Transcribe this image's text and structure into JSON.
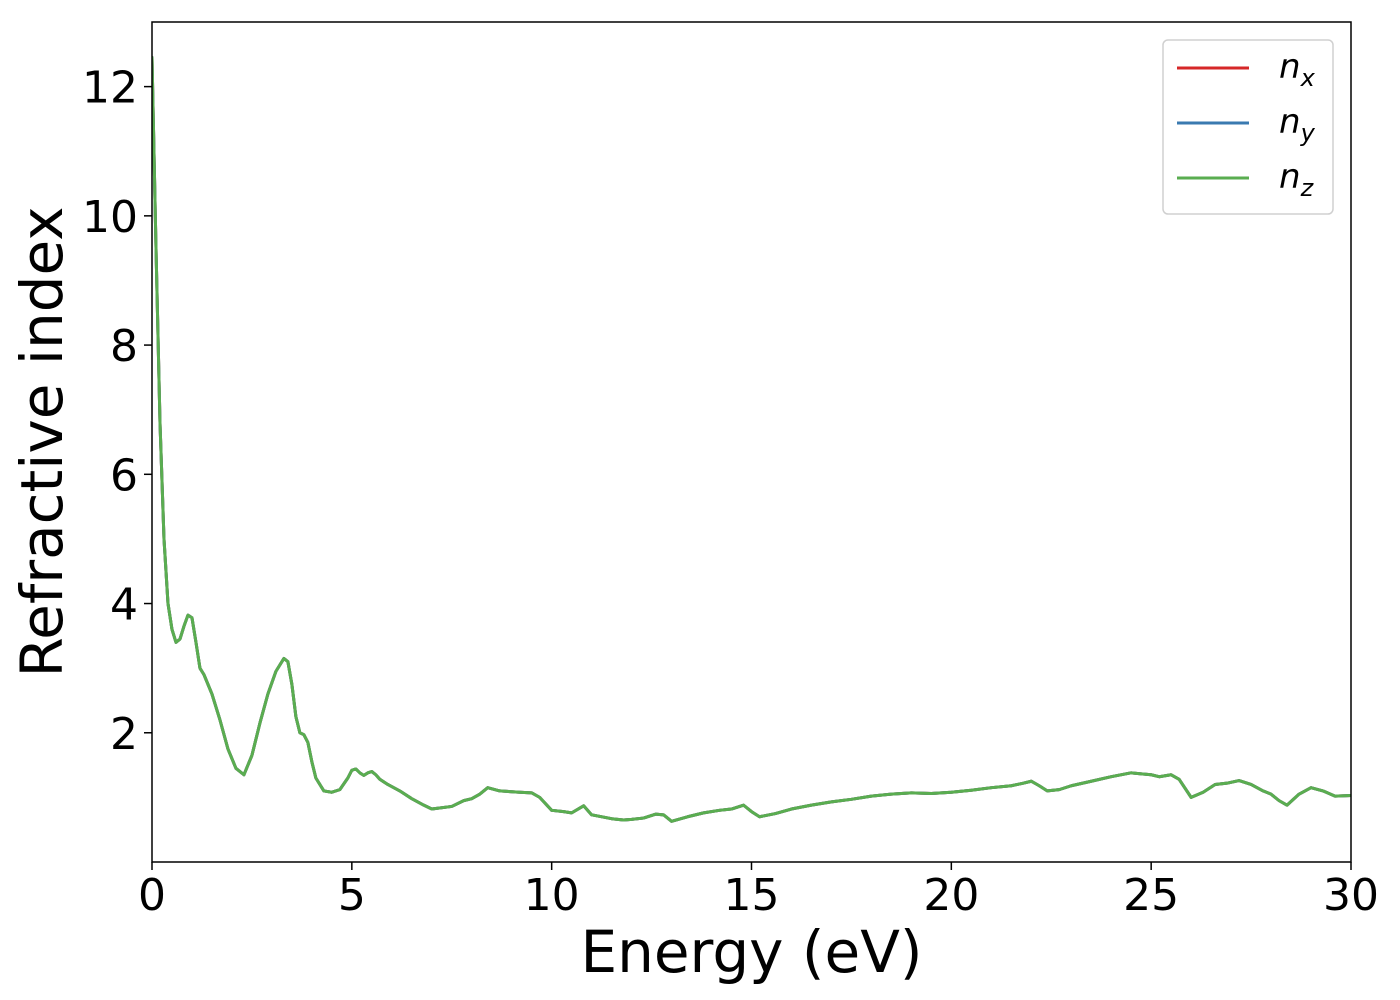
{
  "chart_data": {
    "type": "line",
    "title": "",
    "xlabel": "Energy (eV)",
    "ylabel": "Refractive index",
    "xlim": [
      0,
      30
    ],
    "ylim": [
      0,
      13
    ],
    "xticks": [
      0,
      5,
      10,
      15,
      20,
      25,
      30
    ],
    "yticks": [
      2,
      4,
      6,
      8,
      10,
      12
    ],
    "grid": false,
    "legend_position": "top-right",
    "x": [
      0,
      0.1,
      0.2,
      0.3,
      0.4,
      0.5,
      0.6,
      0.7,
      0.8,
      0.9,
      1.0,
      1.1,
      1.2,
      1.3,
      1.5,
      1.7,
      1.9,
      2.1,
      2.3,
      2.5,
      2.7,
      2.9,
      3.1,
      3.3,
      3.4,
      3.5,
      3.6,
      3.7,
      3.8,
      3.9,
      4.0,
      4.1,
      4.3,
      4.5,
      4.7,
      4.9,
      5.0,
      5.1,
      5.2,
      5.3,
      5.4,
      5.5,
      5.6,
      5.7,
      5.9,
      6.2,
      6.5,
      6.8,
      7.0,
      7.5,
      7.8,
      8.0,
      8.2,
      8.4,
      8.7,
      9.2,
      9.5,
      9.7,
      10.0,
      10.3,
      10.5,
      10.8,
      11.0,
      11.5,
      11.8,
      12.0,
      12.3,
      12.6,
      12.8,
      13.0,
      13.4,
      13.8,
      14.2,
      14.5,
      14.8,
      15.0,
      15.2,
      15.6,
      16.0,
      16.5,
      17.0,
      17.5,
      18.0,
      18.5,
      19.0,
      19.5,
      20.0,
      20.5,
      21.0,
      21.5,
      21.8,
      22.0,
      22.2,
      22.4,
      22.7,
      23.0,
      23.5,
      24.0,
      24.5,
      25.0,
      25.2,
      25.5,
      25.7,
      26.0,
      26.3,
      26.6,
      26.9,
      27.2,
      27.5,
      27.8,
      28.0,
      28.2,
      28.4,
      28.7,
      29.0,
      29.3,
      29.6,
      30.0
    ],
    "series": [
      {
        "name": "n_x",
        "color": "#d62728",
        "values": [
          12.45,
          9.5,
          6.8,
          5.0,
          4.0,
          3.6,
          3.4,
          3.45,
          3.65,
          3.82,
          3.78,
          3.4,
          3.0,
          2.9,
          2.6,
          2.2,
          1.75,
          1.45,
          1.35,
          1.65,
          2.15,
          2.6,
          2.95,
          3.15,
          3.1,
          2.75,
          2.25,
          2.0,
          1.97,
          1.85,
          1.55,
          1.3,
          1.1,
          1.08,
          1.12,
          1.3,
          1.42,
          1.44,
          1.38,
          1.34,
          1.38,
          1.4,
          1.35,
          1.28,
          1.2,
          1.1,
          0.98,
          0.88,
          0.82,
          0.86,
          0.95,
          0.98,
          1.05,
          1.15,
          1.1,
          1.08,
          1.07,
          1.0,
          0.8,
          0.78,
          0.76,
          0.87,
          0.73,
          0.67,
          0.65,
          0.66,
          0.68,
          0.74,
          0.73,
          0.63,
          0.7,
          0.76,
          0.8,
          0.82,
          0.88,
          0.78,
          0.7,
          0.75,
          0.82,
          0.88,
          0.93,
          0.97,
          1.02,
          1.05,
          1.07,
          1.06,
          1.08,
          1.11,
          1.15,
          1.18,
          1.22,
          1.25,
          1.18,
          1.1,
          1.12,
          1.18,
          1.25,
          1.32,
          1.38,
          1.35,
          1.32,
          1.35,
          1.28,
          1.0,
          1.08,
          1.2,
          1.22,
          1.26,
          1.2,
          1.1,
          1.05,
          0.95,
          0.88,
          1.05,
          1.15,
          1.1,
          1.02,
          1.03
        ]
      },
      {
        "name": "n_y",
        "color": "#3a7ab0",
        "values": [
          12.45,
          9.5,
          6.8,
          5.0,
          4.0,
          3.6,
          3.4,
          3.45,
          3.65,
          3.82,
          3.78,
          3.4,
          3.0,
          2.9,
          2.6,
          2.2,
          1.75,
          1.45,
          1.35,
          1.65,
          2.15,
          2.6,
          2.95,
          3.15,
          3.1,
          2.75,
          2.25,
          2.0,
          1.97,
          1.85,
          1.55,
          1.3,
          1.1,
          1.08,
          1.12,
          1.3,
          1.42,
          1.44,
          1.38,
          1.34,
          1.38,
          1.4,
          1.35,
          1.28,
          1.2,
          1.1,
          0.98,
          0.88,
          0.82,
          0.86,
          0.95,
          0.98,
          1.05,
          1.15,
          1.1,
          1.08,
          1.07,
          1.0,
          0.8,
          0.78,
          0.76,
          0.87,
          0.73,
          0.67,
          0.65,
          0.66,
          0.68,
          0.74,
          0.73,
          0.63,
          0.7,
          0.76,
          0.8,
          0.82,
          0.88,
          0.78,
          0.7,
          0.75,
          0.82,
          0.88,
          0.93,
          0.97,
          1.02,
          1.05,
          1.07,
          1.06,
          1.08,
          1.11,
          1.15,
          1.18,
          1.22,
          1.25,
          1.18,
          1.1,
          1.12,
          1.18,
          1.25,
          1.32,
          1.38,
          1.35,
          1.32,
          1.35,
          1.28,
          1.0,
          1.08,
          1.2,
          1.22,
          1.26,
          1.2,
          1.1,
          1.05,
          0.95,
          0.88,
          1.05,
          1.15,
          1.1,
          1.02,
          1.03
        ]
      },
      {
        "name": "n_z",
        "color": "#5aad50",
        "values": [
          12.45,
          9.5,
          6.8,
          5.0,
          4.0,
          3.6,
          3.4,
          3.45,
          3.65,
          3.82,
          3.78,
          3.4,
          3.0,
          2.9,
          2.6,
          2.2,
          1.75,
          1.45,
          1.35,
          1.65,
          2.15,
          2.6,
          2.95,
          3.15,
          3.1,
          2.75,
          2.25,
          2.0,
          1.97,
          1.85,
          1.55,
          1.3,
          1.1,
          1.08,
          1.12,
          1.3,
          1.42,
          1.44,
          1.38,
          1.34,
          1.38,
          1.4,
          1.35,
          1.28,
          1.2,
          1.1,
          0.98,
          0.88,
          0.82,
          0.86,
          0.95,
          0.98,
          1.05,
          1.15,
          1.1,
          1.08,
          1.07,
          1.0,
          0.8,
          0.78,
          0.76,
          0.87,
          0.73,
          0.67,
          0.65,
          0.66,
          0.68,
          0.74,
          0.73,
          0.63,
          0.7,
          0.76,
          0.8,
          0.82,
          0.88,
          0.78,
          0.7,
          0.75,
          0.82,
          0.88,
          0.93,
          0.97,
          1.02,
          1.05,
          1.07,
          1.06,
          1.08,
          1.11,
          1.15,
          1.18,
          1.22,
          1.25,
          1.18,
          1.1,
          1.12,
          1.18,
          1.25,
          1.32,
          1.38,
          1.35,
          1.32,
          1.35,
          1.28,
          1.0,
          1.08,
          1.2,
          1.22,
          1.26,
          1.2,
          1.1,
          1.05,
          0.95,
          0.88,
          1.05,
          1.15,
          1.1,
          1.02,
          1.03
        ]
      }
    ],
    "legend": [
      {
        "base": "n",
        "sub": "x"
      },
      {
        "base": "n",
        "sub": "y"
      },
      {
        "base": "n",
        "sub": "z"
      }
    ]
  }
}
